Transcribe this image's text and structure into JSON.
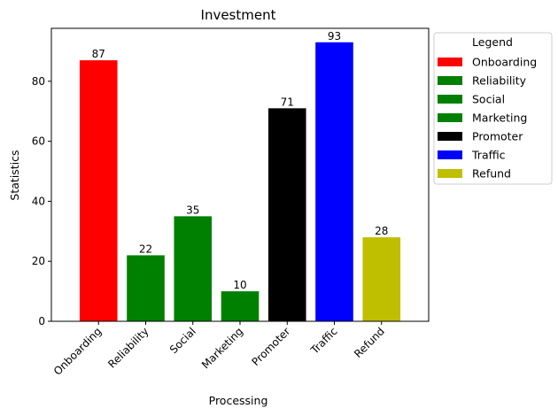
{
  "chart_data": {
    "type": "bar",
    "title": "Investment",
    "xlabel": "Processing",
    "ylabel": "Statistics",
    "categories": [
      "Onboarding",
      "Reliability",
      "Social",
      "Marketing",
      "Promoter",
      "Traffic",
      "Refund"
    ],
    "values": [
      87,
      22,
      35,
      10,
      71,
      93,
      28
    ],
    "colors": [
      "#ff0000",
      "#008000",
      "#008000",
      "#008000",
      "#000000",
      "#0000ff",
      "#bfbf00"
    ],
    "ylim": [
      0,
      97.65
    ],
    "yticks": [
      0,
      20,
      40,
      60,
      80
    ],
    "grid": false,
    "legend": {
      "title": "Legend",
      "placement": "outside-upper-right",
      "entries": [
        {
          "label": "Onboarding",
          "color": "#ff0000"
        },
        {
          "label": "Reliability",
          "color": "#008000"
        },
        {
          "label": "Social",
          "color": "#008000"
        },
        {
          "label": "Marketing",
          "color": "#008000"
        },
        {
          "label": "Promoter",
          "color": "#000000"
        },
        {
          "label": "Traffic",
          "color": "#0000ff"
        },
        {
          "label": "Refund",
          "color": "#bfbf00"
        }
      ]
    }
  }
}
